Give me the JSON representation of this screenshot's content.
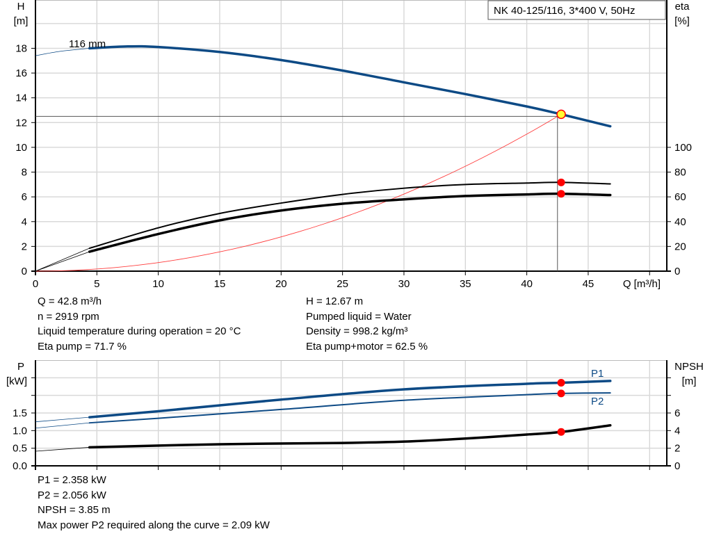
{
  "chart_data": [
    {
      "type": "line",
      "title": "NK 40-125/116, 3*400 V, 50Hz",
      "xlabel": "Q [m³/h]",
      "ylabel": "H\n[m]",
      "ylabel_line1": "H",
      "ylabel_line2": "[m]",
      "y2label_line1": "eta",
      "y2label_line2": "[%]",
      "xlim": [
        0,
        51.4
      ],
      "ylim": [
        0,
        21.9
      ],
      "y2lim": [
        0,
        219
      ],
      "xticks": [
        "0",
        "5",
        "10",
        "15",
        "20",
        "25",
        "30",
        "35",
        "40",
        "45"
      ],
      "yticks": [
        "0",
        "2",
        "4",
        "6",
        "8",
        "10",
        "12",
        "14",
        "16",
        "18"
      ],
      "y2ticks": [
        "0",
        "20",
        "40",
        "60",
        "80",
        "100"
      ],
      "grid": true,
      "curve_label": "116 mm",
      "colors": {
        "head": "#0d4a85",
        "eta": "#000000",
        "system": "#ff3b3b",
        "point": "#ff0000",
        "duty_point_fill": "#ffff33"
      },
      "series": [
        {
          "key": "head",
          "axis": "left",
          "thin_x": [
            0,
            2,
            4.4
          ],
          "thin_y": [
            17.4,
            17.75,
            18.0
          ],
          "x": [
            4.4,
            7.5,
            10,
            15,
            20,
            25,
            30,
            35,
            40,
            42.8,
            46.8
          ],
          "y": [
            18.0,
            18.15,
            18.1,
            17.7,
            17.05,
            16.2,
            15.25,
            14.3,
            13.3,
            12.67,
            11.7
          ]
        },
        {
          "key": "eta_pump",
          "axis": "right",
          "thin_x": [
            0,
            4.4
          ],
          "thin_y": [
            0,
            18.5
          ],
          "x": [
            4.4,
            10,
            15,
            20,
            25,
            30,
            35,
            40,
            42.8,
            46.8
          ],
          "y": [
            18.5,
            35,
            46.6,
            55,
            62,
            67,
            70,
            71.2,
            71.7,
            70.5
          ]
        },
        {
          "key": "eta_pump_motor",
          "axis": "right",
          "thin_x": [
            0,
            4.4
          ],
          "thin_y": [
            0,
            15.7
          ],
          "x": [
            4.4,
            10,
            15,
            20,
            25,
            30,
            35,
            40,
            42.8,
            46.8
          ],
          "y": [
            15.7,
            30,
            41,
            49,
            54.5,
            58,
            60.7,
            62,
            62.5,
            61.5
          ]
        },
        {
          "key": "system",
          "axis": "left",
          "system_curve": {
            "Q": 42.8,
            "H": 12.67
          }
        }
      ],
      "duty_point": {
        "Q": 42.8,
        "H": 12.67,
        "eta_pump": 71.7,
        "eta_pump_motor": 62.5
      },
      "requested_point": {
        "Q": 42.5,
        "H": 12.5
      }
    },
    {
      "type": "line",
      "ylabel_line1": "P",
      "ylabel_line2": "[kW]",
      "y2label_line1": "NPSH",
      "y2label_line2": "[m]",
      "xlim": [
        0,
        51.4
      ],
      "ylim": [
        0,
        3.0
      ],
      "y2lim": [
        0,
        12
      ],
      "yticks": [
        "0.0",
        "0.5",
        "1.0",
        "1.5"
      ],
      "y2ticks": [
        "0",
        "2",
        "4",
        "6"
      ],
      "grid": true,
      "series": [
        {
          "name": "P1",
          "axis": "left",
          "color": "#0d4a85",
          "thin_x": [
            0,
            4.4
          ],
          "thin_y": [
            1.25,
            1.38
          ],
          "x": [
            4.4,
            10,
            20,
            30,
            40,
            42.8,
            46.8
          ],
          "y": [
            1.38,
            1.55,
            1.88,
            2.17,
            2.33,
            2.358,
            2.41
          ]
        },
        {
          "name": "P2",
          "axis": "left",
          "color": "#0d4a85",
          "thin_x": [
            0,
            4.4
          ],
          "thin_y": [
            1.07,
            1.22
          ],
          "x": [
            4.4,
            10,
            20,
            30,
            40,
            42.8,
            46.8
          ],
          "y": [
            1.22,
            1.35,
            1.6,
            1.86,
            2.02,
            2.056,
            2.07
          ]
        },
        {
          "key": "npsh",
          "axis": "right",
          "color": "#000000",
          "thin_x": [
            0,
            4.4
          ],
          "thin_y": [
            1.66,
            2.1
          ],
          "x": [
            4.4,
            15,
            25,
            30,
            35,
            40,
            42.8,
            46.8
          ],
          "y": [
            2.1,
            2.45,
            2.6,
            2.75,
            3.1,
            3.55,
            3.85,
            4.6
          ]
        }
      ],
      "duty_point": {
        "Q": 42.8,
        "P1": 2.358,
        "P2": 2.056,
        "NPSH": 3.85
      }
    }
  ],
  "info_top": {
    "left": [
      "Q = 42.8 m³/h",
      "n = 2919 rpm",
      "Liquid temperature during operation = 20 °C",
      "Eta pump = 71.7 %"
    ],
    "right": [
      "H = 12.67 m",
      "Pumped liquid = Water",
      "Density = 998.2 kg/m³",
      "Eta pump+motor = 62.5 %"
    ]
  },
  "info_bottom": [
    "P1 = 2.358 kW",
    "P2 = 2.056 kW",
    "NPSH = 3.85 m",
    "Max power P2 required along the curve = 2.09 kW"
  ]
}
